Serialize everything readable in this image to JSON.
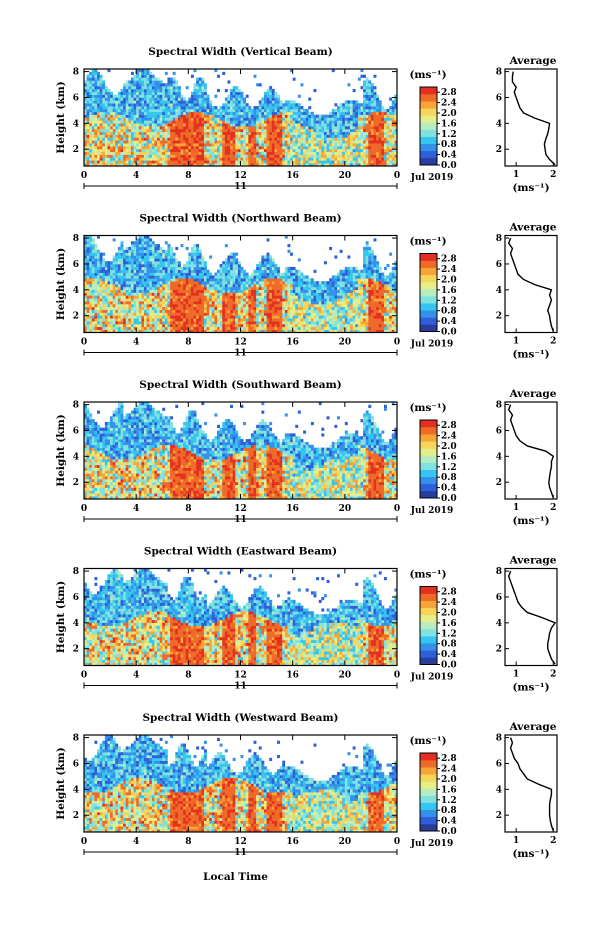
{
  "colors": [
    "#2a3c9c",
    "#2e5ed8",
    "#3590ea",
    "#35c5ee",
    "#7fe1e0",
    "#b5ecc0",
    "#e6ee8a",
    "#f6d65a",
    "#f6a536",
    "#ef6a28",
    "#e33020"
  ],
  "colorbar": {
    "unit": "(ms⁻¹)",
    "ticks": [
      "0.0",
      "0.4",
      "0.8",
      "1.2",
      "1.6",
      "2.0",
      "2.4",
      "2.8"
    ],
    "vmin": 0,
    "vmax": 3.0
  },
  "xaxis": {
    "label": "Local Time",
    "ticks": [
      "0",
      "4",
      "8",
      "12",
      "16",
      "20",
      "0"
    ],
    "date_day": "11",
    "date_month": "Jul 2019"
  },
  "yaxis": {
    "label": "Height (km)",
    "ticks": [
      "2",
      "4",
      "6",
      "8"
    ]
  },
  "profile_axis": {
    "title": "Average",
    "xlabel": "(ms⁻¹)",
    "xticks": [
      "1",
      "2"
    ],
    "yticks": [
      "2",
      "4",
      "6",
      "8"
    ]
  },
  "chart_data": [
    {
      "type": "heatmap",
      "title": "Spectral Width (Vertical Beam)",
      "xlim": [
        0,
        24
      ],
      "ylim": [
        0.7,
        8.2
      ],
      "clim": [
        0,
        3.0
      ],
      "profile": {
        "height_km": [
          0.8,
          1.2,
          1.6,
          2.0,
          2.4,
          2.8,
          3.2,
          3.6,
          4.0,
          4.4,
          4.8,
          5.2,
          5.6,
          6.0,
          6.4,
          6.8,
          7.2,
          7.6,
          8.0
        ],
        "width_ms": [
          2.05,
          1.9,
          1.8,
          1.78,
          1.76,
          1.8,
          1.85,
          1.88,
          1.9,
          1.5,
          1.2,
          1.1,
          1.05,
          1.0,
          0.95,
          1.0,
          0.9,
          0.9,
          0.92
        ]
      }
    },
    {
      "type": "heatmap",
      "title": "Spectral Width (Northward Beam)",
      "xlim": [
        0,
        24
      ],
      "ylim": [
        0.7,
        8.2
      ],
      "clim": [
        0,
        3.0
      ],
      "profile": {
        "height_km": [
          0.8,
          1.2,
          1.6,
          2.0,
          2.4,
          2.8,
          3.2,
          3.6,
          4.0,
          4.4,
          4.8,
          5.2,
          5.6,
          6.0,
          6.4,
          6.8,
          7.2,
          7.6,
          8.0
        ],
        "width_ms": [
          2.0,
          1.95,
          1.92,
          1.9,
          1.85,
          1.9,
          1.95,
          1.9,
          1.95,
          1.5,
          1.2,
          1.05,
          1.0,
          0.95,
          0.9,
          0.85,
          0.9,
          0.8,
          0.85
        ]
      }
    },
    {
      "type": "heatmap",
      "title": "Spectral Width (Southward Beam)",
      "xlim": [
        0,
        24
      ],
      "ylim": [
        0.7,
        8.2
      ],
      "clim": [
        0,
        3.0
      ],
      "profile": {
        "height_km": [
          0.8,
          1.2,
          1.6,
          2.0,
          2.4,
          2.8,
          3.2,
          3.6,
          4.0,
          4.4,
          4.8,
          5.2,
          5.6,
          6.0,
          6.4,
          6.8,
          7.2,
          7.6,
          8.0
        ],
        "width_ms": [
          2.0,
          1.95,
          1.9,
          1.88,
          1.9,
          1.92,
          1.95,
          1.95,
          2.0,
          1.8,
          1.3,
          1.1,
          1.0,
          0.95,
          0.9,
          0.85,
          0.9,
          0.8,
          0.85
        ]
      }
    },
    {
      "type": "heatmap",
      "title": "Spectral Width (Eastward Beam)",
      "xlim": [
        0,
        24
      ],
      "ylim": [
        0.7,
        8.2
      ],
      "clim": [
        0,
        3.0
      ],
      "profile": {
        "height_km": [
          0.8,
          1.2,
          1.6,
          2.0,
          2.4,
          2.8,
          3.2,
          3.6,
          4.0,
          4.4,
          4.8,
          5.2,
          5.6,
          6.0,
          6.4,
          6.8,
          7.2,
          7.6,
          8.0
        ],
        "width_ms": [
          2.05,
          1.95,
          1.9,
          1.85,
          1.85,
          1.88,
          1.9,
          1.95,
          2.05,
          1.7,
          1.3,
          1.15,
          1.05,
          1.0,
          0.95,
          0.9,
          0.85,
          0.8,
          0.85
        ]
      }
    },
    {
      "type": "heatmap",
      "title": "Spectral Width (Westward Beam)",
      "xlim": [
        0,
        24
      ],
      "ylim": [
        0.7,
        8.2
      ],
      "clim": [
        0,
        3.0
      ],
      "profile": {
        "height_km": [
          0.8,
          1.2,
          1.6,
          2.0,
          2.4,
          2.8,
          3.2,
          3.6,
          4.0,
          4.4,
          4.8,
          5.2,
          5.6,
          6.0,
          6.4,
          6.8,
          7.2,
          7.6,
          8.0
        ],
        "width_ms": [
          2.0,
          1.95,
          1.92,
          1.9,
          1.9,
          1.9,
          1.92,
          1.95,
          1.95,
          1.6,
          1.3,
          1.2,
          1.1,
          1.05,
          0.95,
          0.9,
          0.85,
          0.9,
          0.85
        ]
      }
    }
  ]
}
